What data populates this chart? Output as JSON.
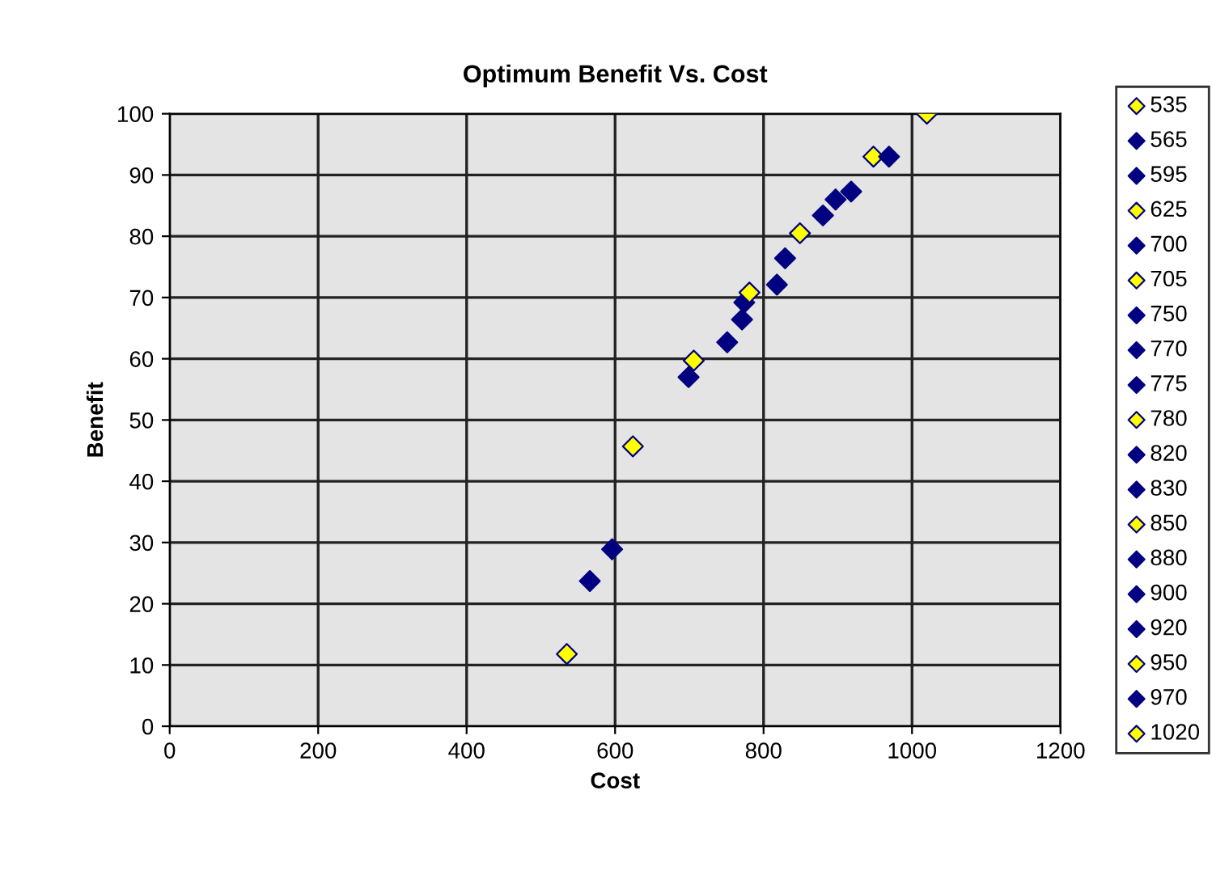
{
  "chart_data": {
    "type": "scatter",
    "title": "Optimum Benefit Vs. Cost",
    "xlabel": "Cost",
    "ylabel": "Benefit",
    "xlim": [
      0,
      1200
    ],
    "xticks": [
      0,
      200,
      400,
      600,
      800,
      1000,
      1200
    ],
    "ylim": [
      0,
      100
    ],
    "yticks": [
      0,
      10,
      20,
      30,
      40,
      50,
      60,
      70,
      80,
      90,
      100
    ],
    "grid": true,
    "legend": "right",
    "marker": "diamond",
    "series": [
      {
        "name": "535",
        "color": "#ffff00",
        "x": [
          535
        ],
        "values": [
          11.8
        ]
      },
      {
        "name": "565",
        "color": "#000080",
        "x": [
          566
        ],
        "values": [
          23.7
        ]
      },
      {
        "name": "595",
        "color": "#000080",
        "x": [
          596
        ],
        "values": [
          28.9
        ]
      },
      {
        "name": "625",
        "color": "#ffff00",
        "x": [
          624
        ],
        "values": [
          45.7
        ]
      },
      {
        "name": "700",
        "color": "#000080",
        "x": [
          699
        ],
        "values": [
          57.0
        ]
      },
      {
        "name": "705",
        "color": "#ffff00",
        "x": [
          706
        ],
        "values": [
          59.7
        ]
      },
      {
        "name": "750",
        "color": "#000080",
        "x": [
          751
        ],
        "values": [
          62.7
        ]
      },
      {
        "name": "770",
        "color": "#000080",
        "x": [
          771
        ],
        "values": [
          66.4
        ]
      },
      {
        "name": "775",
        "color": "#000080",
        "x": [
          774
        ],
        "values": [
          69.2
        ]
      },
      {
        "name": "780",
        "color": "#ffff00",
        "x": [
          781
        ],
        "values": [
          70.8
        ]
      },
      {
        "name": "820",
        "color": "#000080",
        "x": [
          818
        ],
        "values": [
          72.1
        ]
      },
      {
        "name": "830",
        "color": "#000080",
        "x": [
          829
        ],
        "values": [
          76.4
        ]
      },
      {
        "name": "850",
        "color": "#ffff00",
        "x": [
          849
        ],
        "values": [
          80.5
        ]
      },
      {
        "name": "880",
        "color": "#000080",
        "x": [
          880
        ],
        "values": [
          83.4
        ]
      },
      {
        "name": "900",
        "color": "#000080",
        "x": [
          897
        ],
        "values": [
          86.0
        ]
      },
      {
        "name": "920",
        "color": "#000080",
        "x": [
          918
        ],
        "values": [
          87.3
        ]
      },
      {
        "name": "950",
        "color": "#ffff00",
        "x": [
          948
        ],
        "values": [
          93.0
        ]
      },
      {
        "name": "970",
        "color": "#000080",
        "x": [
          969
        ],
        "values": [
          93.0
        ]
      },
      {
        "name": "1020",
        "color": "#ffff00",
        "x": [
          1020
        ],
        "values": [
          100
        ]
      }
    ]
  }
}
